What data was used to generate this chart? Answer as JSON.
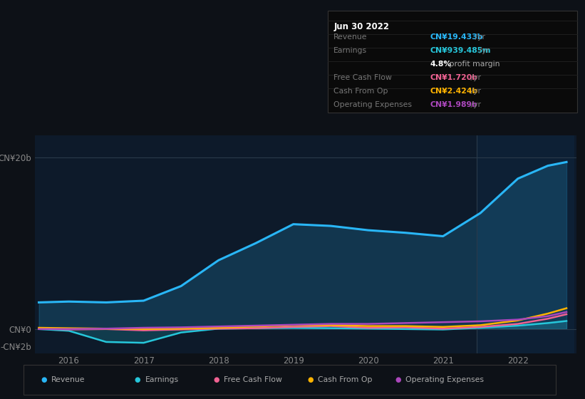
{
  "background_color": "#0d1117",
  "plot_bg_color": "#0d1a2a",
  "highlight_bg_color": "#0d2035",
  "years": [
    2015.6,
    2016.0,
    2016.5,
    2017.0,
    2017.5,
    2018.0,
    2018.5,
    2019.0,
    2019.5,
    2020.0,
    2020.5,
    2021.0,
    2021.5,
    2022.0,
    2022.4,
    2022.65
  ],
  "revenue": [
    3.1,
    3.2,
    3.1,
    3.3,
    5.0,
    8.0,
    10.0,
    12.2,
    12.0,
    11.5,
    11.2,
    10.8,
    13.5,
    17.5,
    19.0,
    19.433
  ],
  "earnings": [
    0.0,
    -0.2,
    -1.5,
    -1.6,
    -0.4,
    0.05,
    0.1,
    0.15,
    0.1,
    0.05,
    0.0,
    -0.05,
    0.15,
    0.4,
    0.7,
    0.939
  ],
  "free_cash_flow": [
    0.05,
    -0.05,
    0.0,
    -0.15,
    -0.05,
    0.05,
    0.1,
    0.25,
    0.35,
    0.15,
    0.2,
    0.05,
    0.25,
    0.6,
    1.2,
    1.72
  ],
  "cash_from_op": [
    0.15,
    0.1,
    0.05,
    0.0,
    0.05,
    0.15,
    0.3,
    0.45,
    0.45,
    0.35,
    0.35,
    0.25,
    0.45,
    1.0,
    1.8,
    2.424
  ],
  "operating_expenses": [
    0.0,
    0.0,
    0.05,
    0.15,
    0.2,
    0.3,
    0.4,
    0.5,
    0.6,
    0.6,
    0.7,
    0.8,
    0.9,
    1.1,
    1.5,
    1.989
  ],
  "revenue_color": "#29b6f6",
  "earnings_color": "#26c6da",
  "free_cash_flow_color": "#f06292",
  "cash_from_op_color": "#ffb300",
  "operating_expenses_color": "#ab47bc",
  "highlight_start": 2021.45,
  "highlight_end": 2022.75,
  "ylim": [
    -2.8,
    22.5
  ],
  "xlim": [
    2015.55,
    2022.78
  ],
  "ytick_vals": [
    -2,
    0,
    20
  ],
  "ytick_labels": [
    "-CN¥2b",
    "CN¥0",
    "CN¥20b"
  ],
  "xtick_positions": [
    2016,
    2017,
    2018,
    2019,
    2020,
    2021,
    2022
  ],
  "xtick_labels": [
    "2016",
    "2017",
    "2018",
    "2019",
    "2020",
    "2021",
    "2022"
  ],
  "info_box": {
    "date": "Jun 30 2022",
    "rows": [
      {
        "label": "Revenue",
        "value": "CN¥19.433b",
        "unit": " /yr",
        "value_color": "#29b6f6"
      },
      {
        "label": "Earnings",
        "value": "CN¥939.485m",
        "unit": " /yr",
        "value_color": "#26c6da"
      },
      {
        "label": "",
        "value": "4.8%",
        "unit": " profit margin",
        "value_color": "#ffffff"
      },
      {
        "label": "Free Cash Flow",
        "value": "CN¥1.720b",
        "unit": " /yr",
        "value_color": "#f06292"
      },
      {
        "label": "Cash From Op",
        "value": "CN¥2.424b",
        "unit": " /yr",
        "value_color": "#ffb300"
      },
      {
        "label": "Operating Expenses",
        "value": "CN¥1.989b",
        "unit": " /yr",
        "value_color": "#ab47bc"
      }
    ]
  },
  "legend_items": [
    {
      "label": "Revenue",
      "color": "#29b6f6"
    },
    {
      "label": "Earnings",
      "color": "#26c6da"
    },
    {
      "label": "Free Cash Flow",
      "color": "#f06292"
    },
    {
      "label": "Cash From Op",
      "color": "#ffb300"
    },
    {
      "label": "Operating Expenses",
      "color": "#ab47bc"
    }
  ]
}
